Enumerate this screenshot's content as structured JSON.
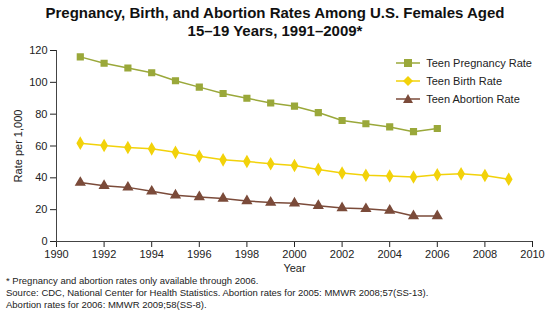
{
  "chart_data": {
    "type": "line",
    "title": "Pregnancy, Birth, and Abortion Rates Among U.S. Females Aged 15–19 Years, 1991–2009*",
    "x_label": "Year",
    "y_label": "Rate per 1,000",
    "x": [
      1991,
      1992,
      1993,
      1994,
      1995,
      1996,
      1997,
      1998,
      1999,
      2000,
      2001,
      2002,
      2003,
      2004,
      2005,
      2006,
      2007,
      2008,
      2009
    ],
    "series": [
      {
        "name": "Teen Pregnancy Rate",
        "color": "#9aa83a",
        "marker": "square",
        "values": [
          116,
          112,
          109,
          106,
          101,
          97,
          93,
          90,
          87,
          85,
          81,
          76,
          74,
          72,
          69,
          71,
          null,
          null,
          null
        ]
      },
      {
        "name": "Teen Birth Rate",
        "color": "#f2d20a",
        "marker": "diamond",
        "values": [
          61.8,
          60.3,
          59.0,
          58.2,
          56.0,
          53.5,
          51.3,
          50.3,
          48.8,
          47.7,
          45.3,
          43.0,
          41.6,
          41.1,
          40.5,
          41.9,
          42.5,
          41.5,
          39.1
        ]
      },
      {
        "name": "Teen Abortion Rate",
        "color": "#7b4b3a",
        "marker": "triangle",
        "values": [
          37,
          35,
          34,
          31.5,
          29,
          28,
          27,
          25.5,
          24.5,
          24,
          22.5,
          21,
          20.5,
          19.5,
          16,
          16,
          null,
          null,
          null
        ]
      }
    ],
    "xlim": [
      1990,
      2010
    ],
    "xticks": [
      1990,
      1992,
      1994,
      1996,
      1998,
      2000,
      2002,
      2004,
      2006,
      2008,
      2010
    ],
    "ylim": [
      0,
      120
    ],
    "yticks": [
      0,
      20,
      40,
      60,
      80,
      100,
      120
    ],
    "grid": false,
    "legend": "top-right",
    "notes": [
      "* Pregnancy and abortion rates only available through 2006.",
      "Source: CDC, National Center for Health Statistics. Abortion rates for 2005: MMWR 2008;57(SS-13).",
      "Abortion rates for 2006: MMWR 2009;58(SS-8)."
    ]
  }
}
